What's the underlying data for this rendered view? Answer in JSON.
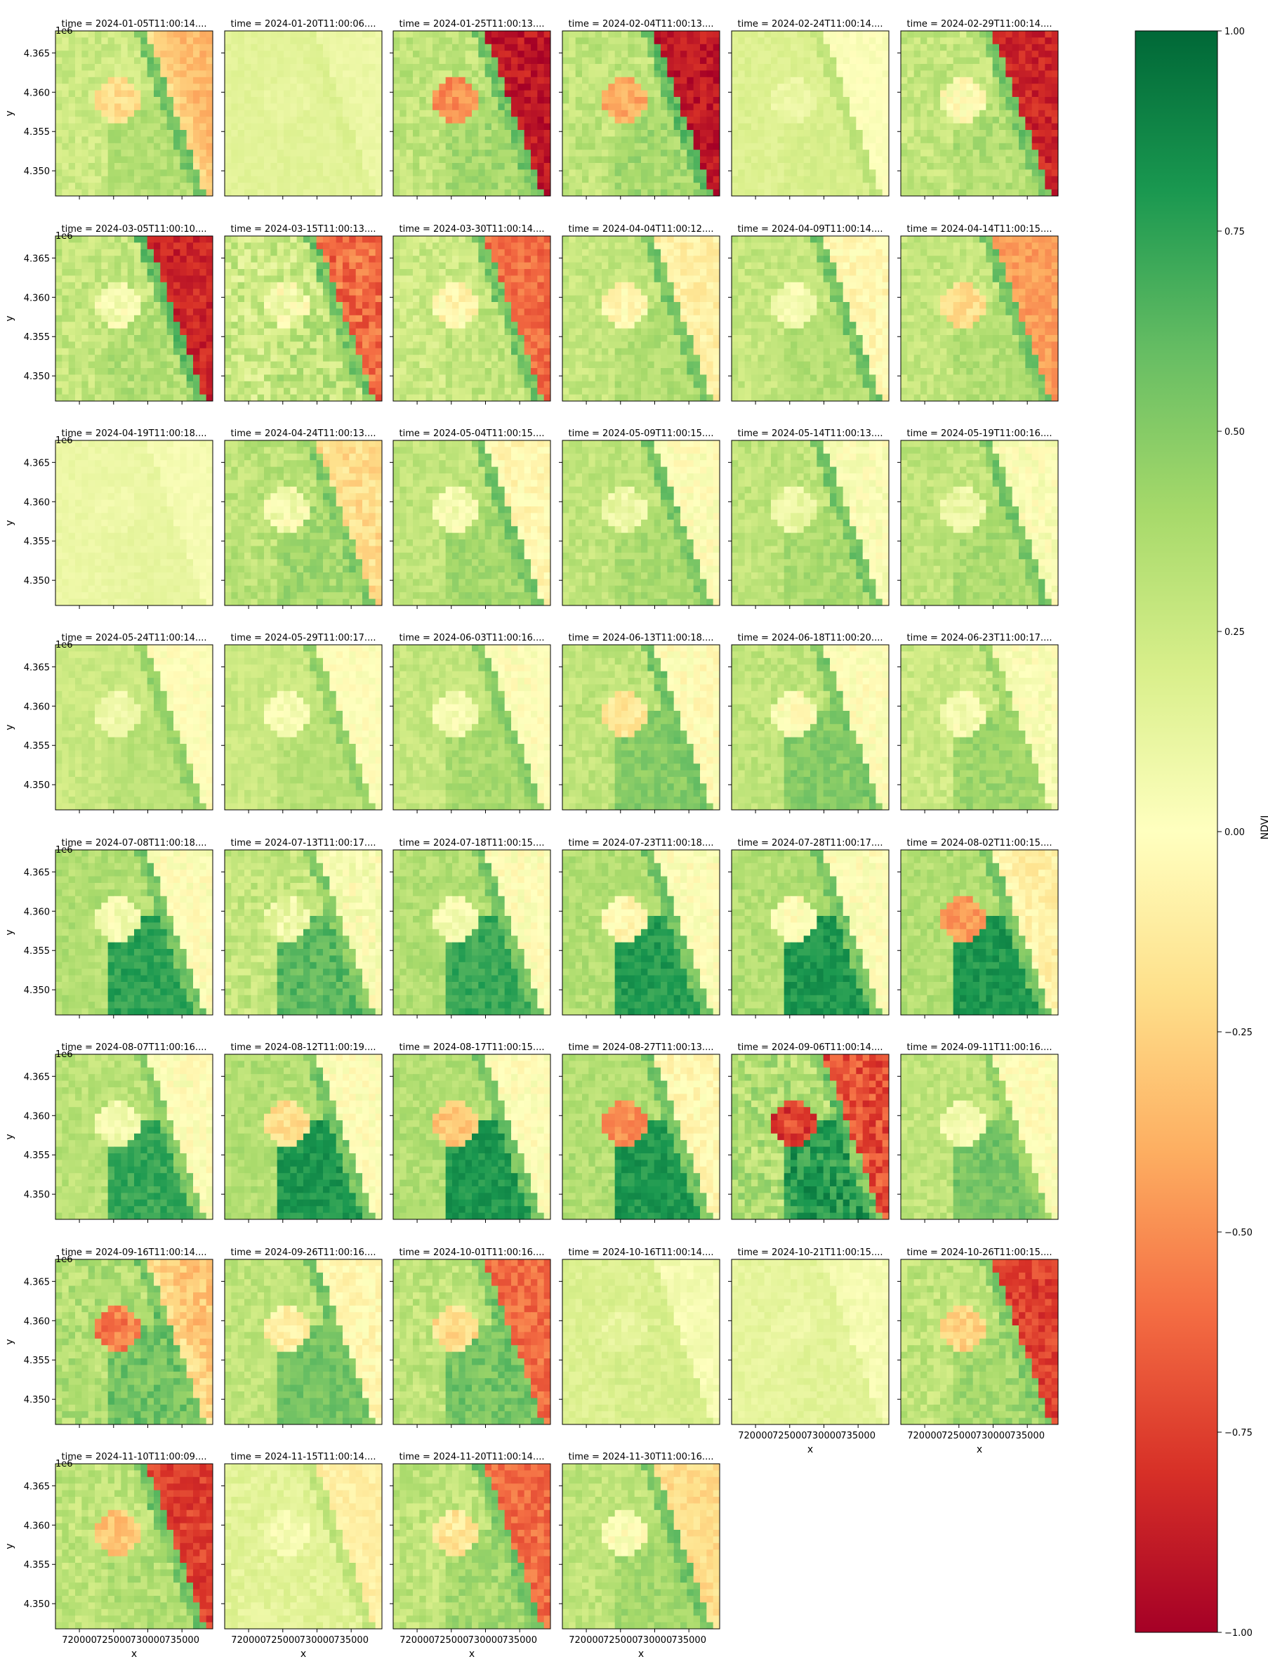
{
  "chart_data": {
    "type": "heatmap",
    "layout": "faceted-grid",
    "facet_rows": 8,
    "facet_cols": 6,
    "colormap": "RdYlGn",
    "colorbar": {
      "label": "NDVI",
      "range": [
        -1.0,
        1.0
      ],
      "ticks": [
        1.0,
        0.75,
        0.5,
        0.25,
        0.0,
        -0.25,
        -0.5,
        -0.75,
        -1.0
      ],
      "tick_labels": [
        "1.00",
        "0.75",
        "0.50",
        "0.25",
        "0.00",
        "−0.25",
        "−0.50",
        "−0.75",
        "−1.00"
      ]
    },
    "x_axis": {
      "label": "x",
      "range": [
        716500,
        739500
      ],
      "ticks": [
        720000,
        725000,
        730000,
        735000
      ],
      "tick_labels": [
        "720000",
        "725000",
        "730000",
        "735000"
      ]
    },
    "y_axis": {
      "label": "y",
      "offset_label": "1e6",
      "range": [
        4.3468,
        4.3678
      ],
      "ticks": [
        4.365,
        4.36,
        4.355,
        4.35
      ],
      "tick_labels": [
        "4.365",
        "4.360",
        "4.355",
        "4.350"
      ]
    },
    "panels": [
      {
        "title": "time = 2024-01-05T11:00:14....",
        "pattern": "sea-red-light",
        "ocean": -0.35,
        "coast": 0.55,
        "forest": 0.35,
        "land": 0.25,
        "scar": -0.2,
        "noise": 0.08
      },
      {
        "title": "time = 2024-01-20T11:00:06....",
        "pattern": "haze",
        "ocean": 0.1,
        "coast": 0.18,
        "forest": 0.15,
        "land": 0.15,
        "scar": 0.12,
        "noise": 0.03
      },
      {
        "title": "time = 2024-01-25T11:00:13....",
        "pattern": "sea-red",
        "ocean": -0.9,
        "coast": 0.55,
        "forest": 0.4,
        "land": 0.3,
        "scar": -0.5,
        "noise": 0.1
      },
      {
        "title": "time = 2024-02-04T11:00:13....",
        "pattern": "sea-red",
        "ocean": -0.9,
        "coast": 0.6,
        "forest": 0.4,
        "land": 0.3,
        "scar": -0.4,
        "noise": 0.1
      },
      {
        "title": "time = 2024-02-24T11:00:14....",
        "pattern": "haze",
        "ocean": 0.02,
        "coast": 0.3,
        "forest": 0.2,
        "land": 0.18,
        "scar": 0.1,
        "noise": 0.04
      },
      {
        "title": "time = 2024-02-29T11:00:14....",
        "pattern": "sea-red",
        "ocean": -0.85,
        "coast": 0.55,
        "forest": 0.35,
        "land": 0.28,
        "scar": 0.0,
        "noise": 0.1
      },
      {
        "title": "time = 2024-03-05T11:00:10....",
        "pattern": "sea-red",
        "ocean": -0.85,
        "coast": 0.6,
        "forest": 0.35,
        "land": 0.28,
        "scar": 0.05,
        "noise": 0.1
      },
      {
        "title": "time = 2024-03-15T11:00:13....",
        "pattern": "sea-red",
        "ocean": -0.6,
        "coast": 0.55,
        "forest": 0.3,
        "land": 0.25,
        "scar": 0.05,
        "noise": 0.15
      },
      {
        "title": "time = 2024-03-30T11:00:14....",
        "pattern": "sea-red",
        "ocean": -0.6,
        "coast": 0.55,
        "forest": 0.3,
        "land": 0.25,
        "scar": -0.05,
        "noise": 0.1
      },
      {
        "title": "time = 2024-04-04T11:00:12....",
        "pattern": "sea-light",
        "ocean": -0.1,
        "coast": 0.55,
        "forest": 0.35,
        "land": 0.28,
        "scar": -0.05,
        "noise": 0.08
      },
      {
        "title": "time = 2024-04-09T11:00:14....",
        "pattern": "sea-light",
        "ocean": -0.05,
        "coast": 0.55,
        "forest": 0.35,
        "land": 0.28,
        "scar": 0.05,
        "noise": 0.08
      },
      {
        "title": "time = 2024-04-14T11:00:15....",
        "pattern": "sea-red",
        "ocean": -0.45,
        "coast": 0.55,
        "forest": 0.35,
        "land": 0.28,
        "scar": -0.2,
        "noise": 0.08
      },
      {
        "title": "time = 2024-04-19T11:00:18....",
        "pattern": "haze",
        "ocean": 0.05,
        "coast": 0.12,
        "forest": 0.12,
        "land": 0.1,
        "scar": 0.08,
        "noise": 0.03
      },
      {
        "title": "time = 2024-04-24T11:00:13....",
        "pattern": "sea-light",
        "ocean": -0.2,
        "coast": 0.5,
        "forest": 0.4,
        "land": 0.32,
        "scar": 0.05,
        "noise": 0.1
      },
      {
        "title": "time = 2024-05-04T11:00:15....",
        "pattern": "sea-light",
        "ocean": -0.05,
        "coast": 0.55,
        "forest": 0.4,
        "land": 0.3,
        "scar": 0.05,
        "noise": 0.08
      },
      {
        "title": "time = 2024-05-09T11:00:15....",
        "pattern": "sea-light",
        "ocean": 0.0,
        "coast": 0.55,
        "forest": 0.38,
        "land": 0.3,
        "scar": 0.1,
        "noise": 0.08
      },
      {
        "title": "time = 2024-05-14T11:00:13....",
        "pattern": "sea-light",
        "ocean": 0.02,
        "coast": 0.55,
        "forest": 0.38,
        "land": 0.3,
        "scar": 0.1,
        "noise": 0.08
      },
      {
        "title": "time = 2024-05-19T11:00:16....",
        "pattern": "sea-light",
        "ocean": 0.02,
        "coast": 0.55,
        "forest": 0.38,
        "land": 0.3,
        "scar": 0.1,
        "noise": 0.08
      },
      {
        "title": "time = 2024-05-24T11:00:14....",
        "pattern": "sea-light",
        "ocean": 0.0,
        "coast": 0.45,
        "forest": 0.32,
        "land": 0.26,
        "scar": 0.08,
        "noise": 0.06
      },
      {
        "title": "time = 2024-05-29T11:00:17....",
        "pattern": "sea-light",
        "ocean": 0.0,
        "coast": 0.45,
        "forest": 0.33,
        "land": 0.26,
        "scar": 0.05,
        "noise": 0.06
      },
      {
        "title": "time = 2024-06-03T11:00:16....",
        "pattern": "sea-light",
        "ocean": 0.0,
        "coast": 0.5,
        "forest": 0.38,
        "land": 0.28,
        "scar": 0.05,
        "noise": 0.07
      },
      {
        "title": "time = 2024-06-13T11:00:18....",
        "pattern": "sea-light",
        "ocean": -0.02,
        "coast": 0.55,
        "forest": 0.5,
        "land": 0.3,
        "scar": -0.15,
        "noise": 0.08
      },
      {
        "title": "time = 2024-06-18T11:00:20....",
        "pattern": "sea-light",
        "ocean": 0.0,
        "coast": 0.55,
        "forest": 0.5,
        "land": 0.3,
        "scar": 0.0,
        "noise": 0.08
      },
      {
        "title": "time = 2024-06-23T11:00:17....",
        "pattern": "sea-light",
        "ocean": 0.02,
        "coast": 0.4,
        "forest": 0.42,
        "land": 0.25,
        "scar": 0.05,
        "noise": 0.08
      },
      {
        "title": "time = 2024-07-08T11:00:18....",
        "pattern": "sea-light",
        "ocean": 0.0,
        "coast": 0.55,
        "forest": 0.75,
        "land": 0.35,
        "scar": 0.05,
        "noise": 0.08
      },
      {
        "title": "time = 2024-07-13T11:00:17....",
        "pattern": "sea-light",
        "ocean": 0.02,
        "coast": 0.5,
        "forest": 0.62,
        "land": 0.28,
        "scar": 0.1,
        "noise": 0.1
      },
      {
        "title": "time = 2024-07-18T11:00:15....",
        "pattern": "sea-light",
        "ocean": 0.0,
        "coast": 0.55,
        "forest": 0.72,
        "land": 0.35,
        "scar": 0.05,
        "noise": 0.08
      },
      {
        "title": "time = 2024-07-23T11:00:18....",
        "pattern": "sea-light",
        "ocean": 0.0,
        "coast": 0.55,
        "forest": 0.78,
        "land": 0.35,
        "scar": -0.05,
        "noise": 0.08
      },
      {
        "title": "time = 2024-07-28T11:00:17....",
        "pattern": "sea-light",
        "ocean": 0.0,
        "coast": 0.55,
        "forest": 0.8,
        "land": 0.35,
        "scar": 0.0,
        "noise": 0.08
      },
      {
        "title": "time = 2024-08-02T11:00:15....",
        "pattern": "sea-red-light",
        "ocean": -0.1,
        "coast": 0.55,
        "forest": 0.8,
        "land": 0.35,
        "scar": -0.45,
        "noise": 0.08
      },
      {
        "title": "time = 2024-08-07T11:00:16....",
        "pattern": "sea-light",
        "ocean": 0.0,
        "coast": 0.5,
        "forest": 0.72,
        "land": 0.32,
        "scar": 0.05,
        "noise": 0.08
      },
      {
        "title": "time = 2024-08-12T11:00:19....",
        "pattern": "sea-light",
        "ocean": 0.0,
        "coast": 0.55,
        "forest": 0.8,
        "land": 0.35,
        "scar": -0.2,
        "noise": 0.08
      },
      {
        "title": "time = 2024-08-17T11:00:15....",
        "pattern": "sea-light",
        "ocean": 0.0,
        "coast": 0.55,
        "forest": 0.8,
        "land": 0.35,
        "scar": -0.3,
        "noise": 0.08
      },
      {
        "title": "time = 2024-08-27T11:00:13....",
        "pattern": "sea-light",
        "ocean": -0.05,
        "coast": 0.55,
        "forest": 0.8,
        "land": 0.35,
        "scar": -0.5,
        "noise": 0.08
      },
      {
        "title": "time = 2024-09-06T11:00:14....",
        "pattern": "sea-red",
        "ocean": -0.7,
        "coast": 0.55,
        "forest": 0.78,
        "land": 0.35,
        "scar": -0.75,
        "noise": 0.15
      },
      {
        "title": "time = 2024-09-11T11:00:16....",
        "pattern": "sea-light",
        "ocean": 0.0,
        "coast": 0.45,
        "forest": 0.55,
        "land": 0.3,
        "scar": 0.05,
        "noise": 0.08
      },
      {
        "title": "time = 2024-09-16T11:00:14....",
        "pattern": "sea-red-light",
        "ocean": -0.3,
        "coast": 0.55,
        "forest": 0.55,
        "land": 0.35,
        "scar": -0.55,
        "noise": 0.12
      },
      {
        "title": "time = 2024-09-26T11:00:16....",
        "pattern": "sea-light",
        "ocean": -0.05,
        "coast": 0.55,
        "forest": 0.55,
        "land": 0.3,
        "scar": -0.1,
        "noise": 0.08
      },
      {
        "title": "time = 2024-10-01T11:00:16....",
        "pattern": "sea-red",
        "ocean": -0.6,
        "coast": 0.55,
        "forest": 0.55,
        "land": 0.3,
        "scar": -0.2,
        "noise": 0.1
      },
      {
        "title": "time = 2024-10-16T11:00:14....",
        "pattern": "haze",
        "ocean": 0.05,
        "coast": 0.2,
        "forest": 0.2,
        "land": 0.18,
        "scar": 0.12,
        "noise": 0.05
      },
      {
        "title": "time = 2024-10-21T11:00:15....",
        "pattern": "haze",
        "ocean": 0.05,
        "coast": 0.15,
        "forest": 0.15,
        "land": 0.13,
        "scar": 0.1,
        "noise": 0.04
      },
      {
        "title": "time = 2024-10-26T11:00:15....",
        "pattern": "sea-red",
        "ocean": -0.75,
        "coast": 0.5,
        "forest": 0.4,
        "land": 0.3,
        "scar": -0.25,
        "noise": 0.1
      },
      {
        "title": "time = 2024-11-10T11:00:09....",
        "pattern": "sea-red",
        "ocean": -0.75,
        "coast": 0.55,
        "forest": 0.35,
        "land": 0.3,
        "scar": -0.3,
        "noise": 0.1
      },
      {
        "title": "time = 2024-11-15T11:00:14....",
        "pattern": "haze",
        "ocean": -0.1,
        "coast": 0.3,
        "forest": 0.15,
        "land": 0.15,
        "scar": 0.05,
        "noise": 0.06
      },
      {
        "title": "time = 2024-11-20T11:00:14....",
        "pattern": "sea-red",
        "ocean": -0.6,
        "coast": 0.55,
        "forest": 0.4,
        "land": 0.3,
        "scar": -0.15,
        "noise": 0.1
      },
      {
        "title": "time = 2024-11-30T11:00:16....",
        "pattern": "sea-light",
        "ocean": -0.2,
        "coast": 0.55,
        "forest": 0.4,
        "land": 0.3,
        "scar": 0.0,
        "noise": 0.08
      }
    ]
  }
}
